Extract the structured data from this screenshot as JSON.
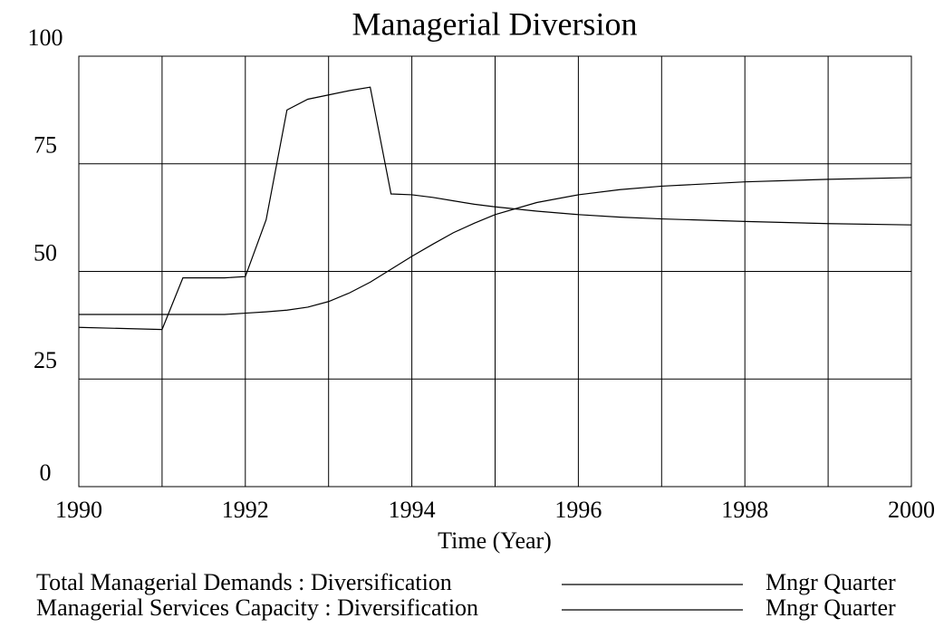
{
  "chart_data": {
    "type": "line",
    "title": "Managerial Diversion",
    "xlabel": "Time (Year)",
    "xlim": [
      1990,
      2000
    ],
    "xticks": [
      1990,
      1992,
      1994,
      1996,
      1998,
      2000
    ],
    "xgrid": [
      1991,
      1992,
      1993,
      1994,
      1995,
      1996,
      1997,
      1998,
      1999
    ],
    "ylim": [
      0,
      100
    ],
    "yticks": [
      0,
      25,
      50,
      75,
      100
    ],
    "grid": true,
    "x": [
      1990,
      1991,
      1991.25,
      1991.75,
      1992,
      1992.25,
      1992.5,
      1992.75,
      1993,
      1993.25,
      1993.5,
      1993.75,
      1994,
      1994.25,
      1994.5,
      1994.75,
      1995,
      1995.5,
      1996,
      1996.5,
      1997,
      1998,
      1999,
      2000
    ],
    "series": [
      {
        "name": "Total Managerial Demands : Diversification",
        "unit": "Mngr Quarter",
        "color": "#000000",
        "values": [
          37,
          36.5,
          48.5,
          48.5,
          48.8,
          62,
          87.5,
          90,
          91,
          92,
          92.8,
          68,
          67.8,
          67.2,
          66.4,
          65.6,
          65,
          64,
          63.2,
          62.6,
          62.2,
          61.6,
          61.1,
          60.8
        ]
      },
      {
        "name": "Managerial Services Capacity : Diversification",
        "unit": "Mngr Quarter",
        "color": "#000000",
        "values": [
          40,
          40,
          40,
          40,
          40.3,
          40.6,
          41,
          41.7,
          43,
          45,
          47.5,
          50.5,
          53.5,
          56.3,
          59,
          61.2,
          63.2,
          66,
          67.8,
          69,
          69.8,
          70.8,
          71.4,
          71.8
        ]
      }
    ]
  }
}
